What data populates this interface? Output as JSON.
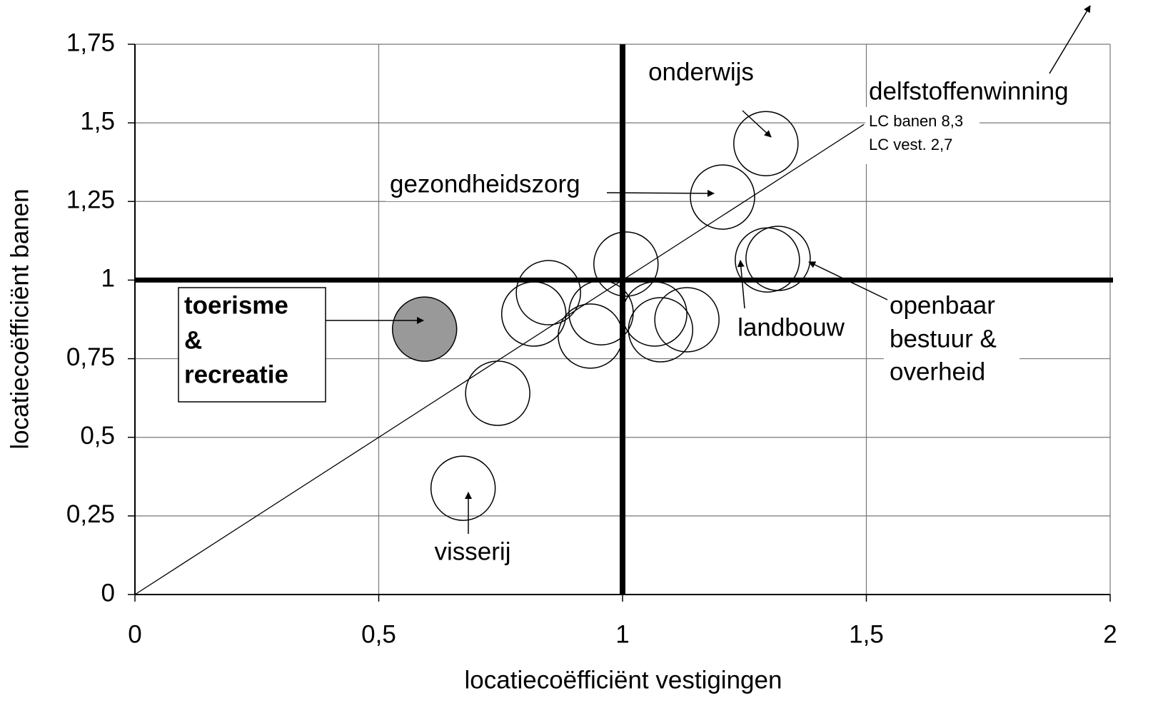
{
  "chart_data": {
    "type": "scatter",
    "x_label": "locatiecoëfficiënt vestigingen",
    "y_label": "locatiecoëfficiënt banen",
    "x": [
      1.294,
      1.205,
      1.297,
      1.319,
      1.007,
      0.848,
      0.818,
      0.956,
      0.934,
      1.066,
      1.078,
      1.132,
      0.594,
      0.744,
      0.673
    ],
    "values": [
      1.434,
      1.264,
      1.064,
      1.069,
      1.051,
      0.96,
      0.892,
      0.896,
      0.822,
      0.892,
      0.842,
      0.874,
      0.844,
      0.64,
      0.338
    ],
    "colors": [
      "#ffffff",
      "#ffffff",
      "#ffffff",
      "#ffffff",
      "#ffffff",
      "#ffffff",
      "#ffffff",
      "#ffffff",
      "#ffffff",
      "#ffffff",
      "#ffffff",
      "#ffffff",
      "#999999",
      "#ffffff",
      "#ffffff"
    ],
    "xlim": [
      0,
      2
    ],
    "ylim": [
      0,
      1.75
    ],
    "xticks": [
      0,
      {
        "value": 0.5,
        "label": "0,5"
      },
      1,
      {
        "value": 1.5,
        "label": "1,5"
      },
      2
    ],
    "yticks": [
      0,
      {
        "value": 0.25,
        "label": "0,25"
      },
      {
        "value": 0.5,
        "label": "0,5"
      },
      {
        "value": 0.75,
        "label": "0,75"
      },
      1,
      {
        "value": 1.25,
        "label": "1,25"
      },
      {
        "value": 1.5,
        "label": "1,5"
      },
      {
        "value": 1.75,
        "label": "1,75"
      }
    ],
    "grid": true,
    "reference_x": 1,
    "reference_y": 1,
    "diagonal": true,
    "annotations": [
      "onderwijs",
      "gezondheidszorg",
      "delfstoffenwinning",
      "LC banen 8,3",
      "LC vest. 2,7",
      "toerisme",
      "&",
      "recreatie",
      "landbouw",
      "openbaar",
      "bestuur &",
      "overheid",
      "visserij"
    ]
  }
}
